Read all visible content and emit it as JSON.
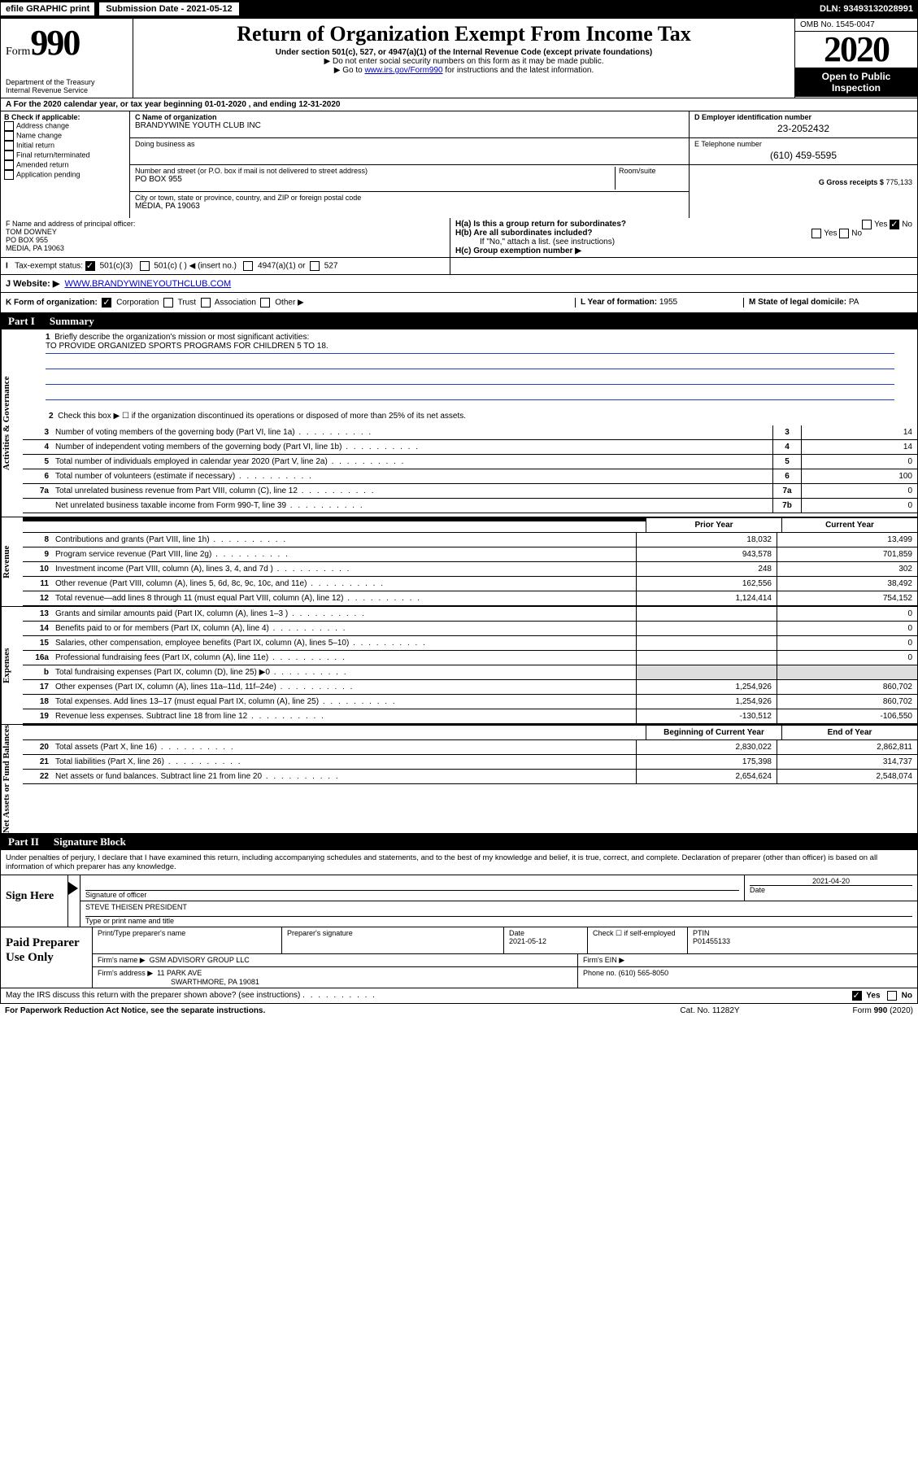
{
  "topbar": {
    "efile": "efile GRAPHIC print",
    "sub_label": "Submission Date - 2021-05-12",
    "dln": "DLN: 93493132028991"
  },
  "header": {
    "form_prefix": "Form",
    "form_num": "990",
    "dept": "Department of the Treasury\nInternal Revenue Service",
    "title": "Return of Organization Exempt From Income Tax",
    "subtitle": "Under section 501(c), 527, or 4947(a)(1) of the Internal Revenue Code (except private foundations)",
    "note1": "▶ Do not enter social security numbers on this form as it may be made public.",
    "note2_pre": "▶ Go to ",
    "note2_link": "www.irs.gov/Form990",
    "note2_post": " for instructions and the latest information.",
    "omb": "OMB No. 1545-0047",
    "year": "2020",
    "open_pub": "Open to Public Inspection"
  },
  "row_a": "A For the 2020 calendar year, or tax year beginning 01-01-2020    , and ending 12-31-2020",
  "box_b": {
    "label": "B Check if applicable:",
    "opts": [
      "Address change",
      "Name change",
      "Initial return",
      "Final return/terminated",
      "Amended return",
      "Application pending"
    ]
  },
  "box_c": {
    "name_lbl": "C Name of organization",
    "name": "BRANDYWINE YOUTH CLUB INC",
    "dba_lbl": "Doing business as",
    "addr_lbl": "Number and street (or P.O. box if mail is not delivered to street address)",
    "room_lbl": "Room/suite",
    "addr": "PO BOX 955",
    "city_lbl": "City or town, state or province, country, and ZIP or foreign postal code",
    "city": "MEDIA, PA  19063"
  },
  "box_d": {
    "lbl": "D Employer identification number",
    "val": "23-2052432"
  },
  "box_e": {
    "lbl": "E Telephone number",
    "val": "(610) 459-5595"
  },
  "box_g": {
    "lbl": "G Gross receipts $",
    "val": "775,133"
  },
  "box_f": {
    "lbl": "F Name and address of principal officer:",
    "name": "TOM DOWNEY",
    "addr1": "PO BOX 955",
    "addr2": "MEDIA, PA  19063"
  },
  "box_h": {
    "a": "H(a)  Is this a group return for subordinates?",
    "a_yes": "Yes",
    "a_no": "No",
    "b": "H(b)  Are all subordinates included?",
    "b_yes": "Yes",
    "b_no": "No",
    "b_note": "If \"No,\" attach a list. (see instructions)",
    "c": "H(c)  Group exemption number ▶"
  },
  "row_i": {
    "lbl": "Tax-exempt status:",
    "o1": "501(c)(3)",
    "o2": "501(c) (  ) ◀ (insert no.)",
    "o3": "4947(a)(1) or",
    "o4": "527"
  },
  "row_j": {
    "lbl": "J   Website: ▶",
    "val": "WWW.BRANDYWINEYOUTHCLUB.COM"
  },
  "row_k": {
    "lbl": "K Form of organization:",
    "o1": "Corporation",
    "o2": "Trust",
    "o3": "Association",
    "o4": "Other ▶",
    "l_lbl": "L Year of formation:",
    "l_val": "1955",
    "m_lbl": "M State of legal domicile:",
    "m_val": "PA"
  },
  "part1": {
    "num": "Part I",
    "title": "Summary"
  },
  "vtabs": {
    "gov": "Activities & Governance",
    "rev": "Revenue",
    "exp": "Expenses",
    "net": "Net Assets or Fund Balances"
  },
  "q1": {
    "n": "1",
    "t": "Briefly describe the organization's mission or most significant activities:",
    "v": "TO PROVIDE ORGANIZED SPORTS PROGRAMS FOR CHILDREN 5 TO 18."
  },
  "q2": {
    "n": "2",
    "t": "Check this box ▶ ☐  if the organization discontinued its operations or disposed of more than 25% of its net assets."
  },
  "gov_rows": [
    {
      "n": "3",
      "t": "Number of voting members of the governing body (Part VI, line 1a)",
      "bn": "3",
      "bv": "14"
    },
    {
      "n": "4",
      "t": "Number of independent voting members of the governing body (Part VI, line 1b)",
      "bn": "4",
      "bv": "14"
    },
    {
      "n": "5",
      "t": "Total number of individuals employed in calendar year 2020 (Part V, line 2a)",
      "bn": "5",
      "bv": "0"
    },
    {
      "n": "6",
      "t": "Total number of volunteers (estimate if necessary)",
      "bn": "6",
      "bv": "100"
    },
    {
      "n": "7a",
      "t": "Total unrelated business revenue from Part VIII, column (C), line 12",
      "bn": "7a",
      "bv": "0"
    },
    {
      "n": "",
      "t": "Net unrelated business taxable income from Form 990-T, line 39",
      "bn": "7b",
      "bv": "0"
    }
  ],
  "hdr_prior": "Prior Year",
  "hdr_curr": "Current Year",
  "rev_rows": [
    {
      "n": "8",
      "t": "Contributions and grants (Part VIII, line 1h)",
      "v1": "18,032",
      "v2": "13,499"
    },
    {
      "n": "9",
      "t": "Program service revenue (Part VIII, line 2g)",
      "v1": "943,578",
      "v2": "701,859"
    },
    {
      "n": "10",
      "t": "Investment income (Part VIII, column (A), lines 3, 4, and 7d )",
      "v1": "248",
      "v2": "302"
    },
    {
      "n": "11",
      "t": "Other revenue (Part VIII, column (A), lines 5, 6d, 8c, 9c, 10c, and 11e)",
      "v1": "162,556",
      "v2": "38,492"
    },
    {
      "n": "12",
      "t": "Total revenue—add lines 8 through 11 (must equal Part VIII, column (A), line 12)",
      "v1": "1,124,414",
      "v2": "754,152"
    }
  ],
  "exp_rows": [
    {
      "n": "13",
      "t": "Grants and similar amounts paid (Part IX, column (A), lines 1–3 )",
      "v1": "",
      "v2": "0"
    },
    {
      "n": "14",
      "t": "Benefits paid to or for members (Part IX, column (A), line 4)",
      "v1": "",
      "v2": "0"
    },
    {
      "n": "15",
      "t": "Salaries, other compensation, employee benefits (Part IX, column (A), lines 5–10)",
      "v1": "",
      "v2": "0"
    },
    {
      "n": "16a",
      "t": "Professional fundraising fees (Part IX, column (A), line 11e)",
      "v1": "",
      "v2": "0"
    },
    {
      "n": "b",
      "t": "Total fundraising expenses (Part IX, column (D), line 25) ▶0",
      "v1": "",
      "v2": "",
      "shade": true
    },
    {
      "n": "17",
      "t": "Other expenses (Part IX, column (A), lines 11a–11d, 11f–24e)",
      "v1": "1,254,926",
      "v2": "860,702"
    },
    {
      "n": "18",
      "t": "Total expenses. Add lines 13–17 (must equal Part IX, column (A), line 25)",
      "v1": "1,254,926",
      "v2": "860,702"
    },
    {
      "n": "19",
      "t": "Revenue less expenses. Subtract line 18 from line 12",
      "v1": "-130,512",
      "v2": "-106,550"
    }
  ],
  "hdr_beg": "Beginning of Current Year",
  "hdr_end": "End of Year",
  "net_rows": [
    {
      "n": "20",
      "t": "Total assets (Part X, line 16)",
      "v1": "2,830,022",
      "v2": "2,862,811"
    },
    {
      "n": "21",
      "t": "Total liabilities (Part X, line 26)",
      "v1": "175,398",
      "v2": "314,737"
    },
    {
      "n": "22",
      "t": "Net assets or fund balances. Subtract line 21 from line 20",
      "v1": "2,654,624",
      "v2": "2,548,074"
    }
  ],
  "part2": {
    "num": "Part II",
    "title": "Signature Block"
  },
  "perjury": "Under penalties of perjury, I declare that I have examined this return, including accompanying schedules and statements, and to the best of my knowledge and belief, it is true, correct, and complete. Declaration of preparer (other than officer) is based on all information of which preparer has any knowledge.",
  "sign": {
    "left": "Sign Here",
    "sig_lbl": "Signature of officer",
    "date": "2021-04-20",
    "date_lbl": "Date",
    "name": "STEVE THEISEN  PRESIDENT",
    "name_lbl": "Type or print name and title"
  },
  "prep": {
    "left": "Paid Preparer Use Only",
    "h1": "Print/Type preparer's name",
    "h2": "Preparer's signature",
    "h3": "Date",
    "h3v": "2021-05-12",
    "h4": "Check ☐ if self-employed",
    "h5": "PTIN",
    "h5v": "P01455133",
    "firm_lbl": "Firm's name    ▶",
    "firm": "GSM ADVISORY GROUP LLC",
    "ein_lbl": "Firm's EIN ▶",
    "addr_lbl": "Firm's address ▶",
    "addr": "11 PARK AVE",
    "addr2": "SWARTHMORE, PA  19081",
    "phone_lbl": "Phone no.",
    "phone": "(610) 565-8050"
  },
  "footer": {
    "q": "May the IRS discuss this return with the preparer shown above? (see instructions)",
    "yes": "Yes",
    "no": "No",
    "pra": "For Paperwork Reduction Act Notice, see the separate instructions.",
    "cat": "Cat. No. 11282Y",
    "form": "Form 990 (2020)"
  }
}
